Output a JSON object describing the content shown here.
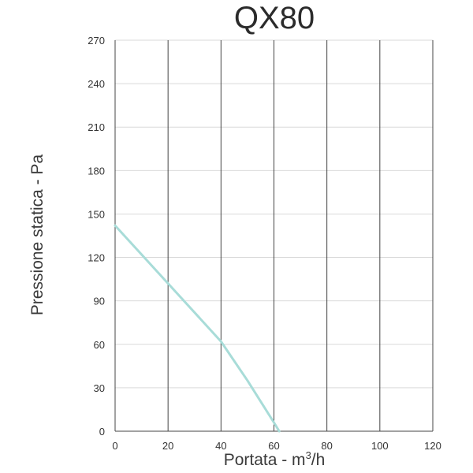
{
  "chart_data": {
    "type": "line",
    "title": "QX80",
    "xlabel_main": "Portata - m",
    "xlabel_sup": "3",
    "xlabel_tail": "/h",
    "ylabel": "Pressione statica - Pa",
    "xlim": [
      0,
      120
    ],
    "ylim": [
      0,
      270
    ],
    "xticks": [
      "0",
      "20",
      "40",
      "60",
      "80",
      "100",
      "120"
    ],
    "yticks": [
      "0",
      "30",
      "60",
      "90",
      "120",
      "150",
      "180",
      "210",
      "240",
      "270"
    ],
    "x_grid": true,
    "y_grid": true,
    "series": [
      {
        "color": "#a8dcd8",
        "x": [
          0,
          20,
          40,
          50,
          60,
          62
        ],
        "y": [
          142,
          102,
          62,
          35,
          6,
          0
        ]
      }
    ],
    "colors": {
      "x_grid": "#444444",
      "y_grid": "#d9d9d9",
      "axis": "#444444"
    }
  }
}
